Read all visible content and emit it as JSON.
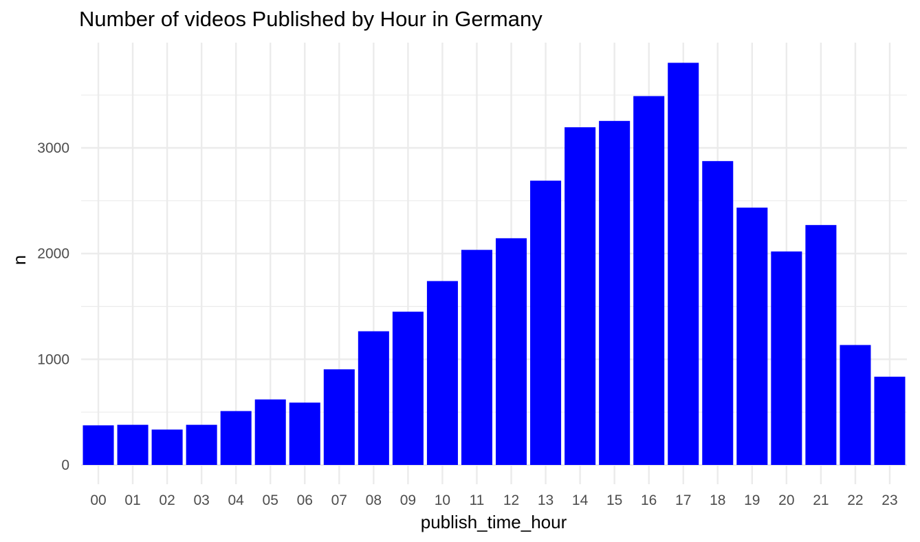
{
  "chart_data": {
    "type": "bar",
    "title": "Number of videos Published by Hour in Germany",
    "xlabel": "publish_time_hour",
    "ylabel": "n",
    "categories": [
      "00",
      "01",
      "02",
      "03",
      "04",
      "05",
      "06",
      "07",
      "08",
      "09",
      "10",
      "11",
      "12",
      "13",
      "14",
      "15",
      "16",
      "17",
      "18",
      "19",
      "20",
      "21",
      "22",
      "23"
    ],
    "values": [
      375,
      380,
      335,
      380,
      510,
      620,
      590,
      905,
      1265,
      1450,
      1740,
      2035,
      2145,
      2690,
      3195,
      3255,
      3490,
      3805,
      2875,
      2435,
      2020,
      2270,
      1135,
      835
    ],
    "yticks": [
      0,
      1000,
      2000,
      3000
    ],
    "ytick_labels": [
      "0",
      "1000",
      "2000",
      "3000"
    ],
    "ylim": [
      0,
      4000
    ],
    "grid": true,
    "legend": "none",
    "bar_color": "#0000ff",
    "grid_color": "#ebebeb"
  }
}
